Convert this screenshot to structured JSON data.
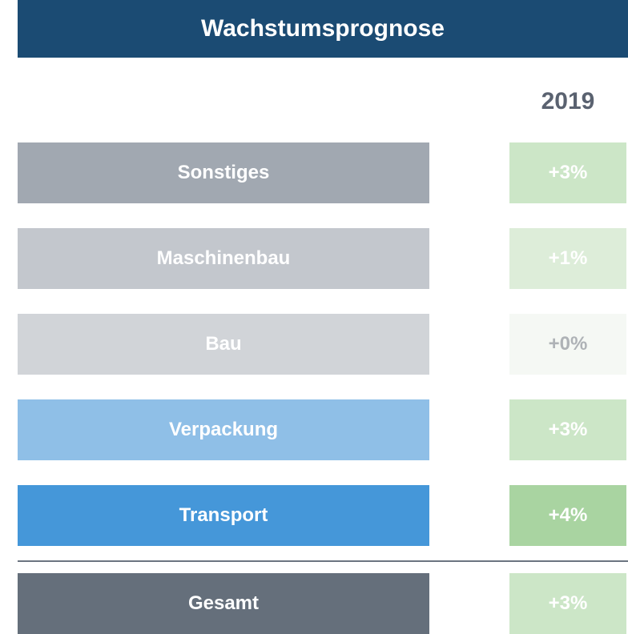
{
  "header": {
    "title": "Wachstumsprognose",
    "year": "2019"
  },
  "rows": [
    {
      "label": "Sonstiges",
      "value": "+3%"
    },
    {
      "label": "Maschinenbau",
      "value": "+1%"
    },
    {
      "label": "Bau",
      "value": "+0%"
    },
    {
      "label": "Verpackung",
      "value": "+3%"
    },
    {
      "label": "Transport",
      "value": "+4%"
    }
  ],
  "total": {
    "label": "Gesamt",
    "value": "+3%"
  }
}
